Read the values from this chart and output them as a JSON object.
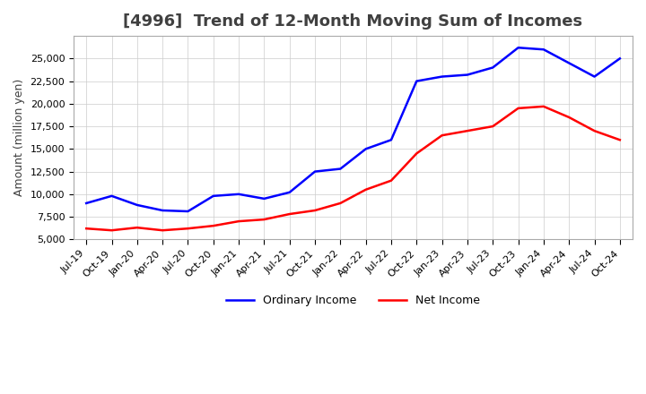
{
  "title": "[4996]  Trend of 12-Month Moving Sum of Incomes",
  "ylabel": "Amount (million yen)",
  "ylim": [
    5000,
    27500
  ],
  "yticks": [
    5000,
    7500,
    10000,
    12500,
    15000,
    17500,
    20000,
    22500,
    25000
  ],
  "x_labels": [
    "Jul-19",
    "Oct-19",
    "Jan-20",
    "Apr-20",
    "Jul-20",
    "Oct-20",
    "Jan-21",
    "Apr-21",
    "Jul-21",
    "Oct-21",
    "Jan-22",
    "Apr-22",
    "Jul-22",
    "Oct-22",
    "Jan-23",
    "Apr-23",
    "Jul-23",
    "Oct-23",
    "Jan-24",
    "Apr-24",
    "Jul-24",
    "Oct-24"
  ],
  "ordinary_income": [
    9000,
    9800,
    8800,
    8200,
    8100,
    9800,
    10000,
    9500,
    10200,
    12500,
    12800,
    15000,
    16000,
    22500,
    23000,
    23200,
    24000,
    26200,
    26000,
    24500,
    23000,
    25000
  ],
  "net_income": [
    6200,
    6000,
    6300,
    6000,
    6200,
    6500,
    7000,
    7200,
    7800,
    8200,
    9000,
    10500,
    11500,
    14500,
    16500,
    17000,
    17500,
    19500,
    19700,
    18500,
    17000,
    16000
  ],
  "ordinary_color": "#0000FF",
  "net_color": "#FF0000",
  "grid_color": "#CCCCCC",
  "background_color": "#FFFFFF",
  "title_color": "#404040",
  "legend_labels": [
    "Ordinary Income",
    "Net Income"
  ]
}
